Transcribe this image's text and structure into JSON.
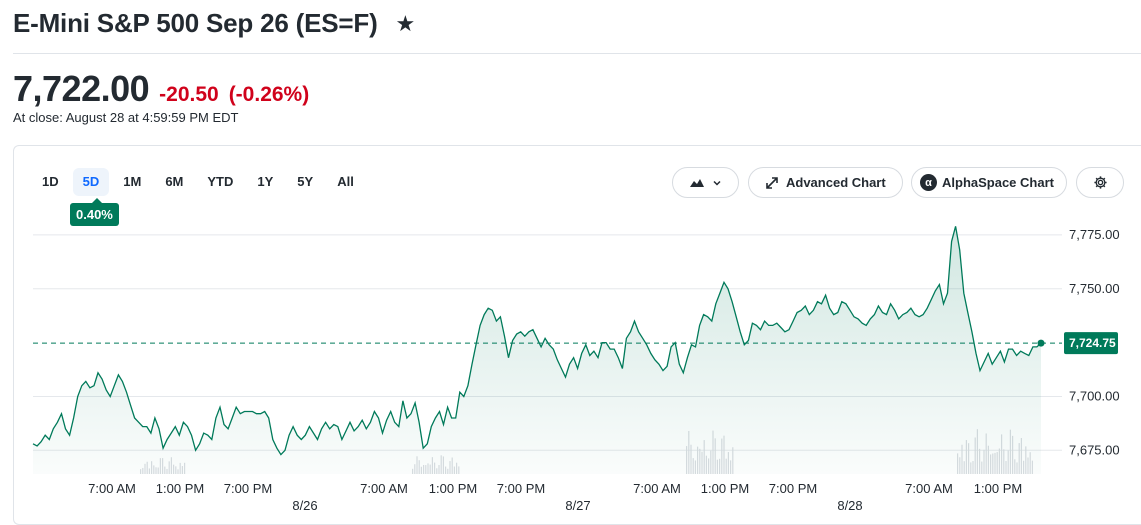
{
  "header": {
    "title": "E-Mini S&P 500 Sep 26 (ES=F)",
    "star_icon": "★"
  },
  "quote": {
    "price": "7,722.00",
    "change": "-20.50",
    "change_pct": "(-0.26%)",
    "close_time": "At close: August 28 at 4:59:59 PM EDT"
  },
  "colors": {
    "up": "#007a5a",
    "down": "#d0021b",
    "active_range": "#0f69ff"
  },
  "toolbar": {
    "ranges": [
      "1D",
      "5D",
      "1M",
      "6M",
      "YTD",
      "1Y",
      "5Y",
      "All"
    ],
    "active_range": "5D",
    "range_change_badge": "0.40%",
    "chart_type_icon": "mountain-chart-icon",
    "advanced_chart_label": "Advanced Chart",
    "alphaspace_chart_label": "AlphaSpace Chart",
    "alpha_symbol": "α",
    "settings_icon": "gear-icon"
  },
  "chart_data": {
    "type": "area",
    "series": [
      {
        "values": [
          7678,
          7677,
          7679,
          7682,
          7680,
          7685,
          7688,
          7692,
          7685,
          7682,
          7690,
          7700,
          7705,
          7707,
          7704,
          7705,
          7711,
          7708,
          7703,
          7700,
          7705,
          7710,
          7707,
          7702,
          7696,
          7690,
          7688,
          7686,
          7686,
          7683,
          7690,
          7685,
          7676,
          7680,
          7683,
          7686,
          7682,
          7688,
          7686,
          7682,
          7675,
          7678,
          7683,
          7682,
          7680,
          7690,
          7695,
          7687,
          7685,
          7690,
          7695,
          7692,
          7693,
          7693,
          7693,
          7692,
          7692,
          7693,
          7690,
          7680,
          7676,
          7673,
          7675,
          7682,
          7686,
          7682,
          7680,
          7682,
          7686,
          7683,
          7680,
          7685,
          7688,
          7685,
          7687,
          7686,
          7680,
          7684,
          7688,
          7684,
          7686,
          7689,
          7685,
          7688,
          7693,
          7690,
          7683,
          7689,
          7693,
          7688,
          7686,
          7698,
          7690,
          7692,
          7697,
          7688,
          7676,
          7678,
          7686,
          7690,
          7693,
          7687,
          7695,
          7690,
          7690,
          7702,
          7700,
          7705,
          7715,
          7724,
          7733,
          7738,
          7741,
          7740,
          7735,
          7737,
          7728,
          7718,
          7726,
          7729,
          7730,
          7728,
          7730,
          7731,
          7727,
          7723,
          7727,
          7724,
          7722,
          7717,
          7713,
          7709,
          7715,
          7718,
          7713,
          7720,
          7724,
          7719,
          7721,
          7718,
          7725,
          7725,
          7722,
          7722,
          7718,
          7713,
          7727,
          7730,
          7735,
          7730,
          7727,
          7724,
          7720,
          7717,
          7715,
          7712,
          7714,
          7723,
          7725,
          7715,
          7711,
          7718,
          7724,
          7723,
          7733,
          7738,
          7737,
          7735,
          7743,
          7748,
          7753,
          7750,
          7744,
          7737,
          7730,
          7724,
          7726,
          7734,
          7733,
          7731,
          7735,
          7733,
          7733,
          7734,
          7732,
          7730,
          7731,
          7735,
          7739,
          7740,
          7742,
          7738,
          7740,
          7744,
          7743,
          7747,
          7741,
          7738,
          7739,
          7744,
          7743,
          7740,
          7737,
          7736,
          7734,
          7733,
          7736,
          7738,
          7742,
          7739,
          7738,
          7743,
          7740,
          7736,
          7738,
          7739,
          7741,
          7738,
          7737,
          7738,
          7741,
          7745,
          7749,
          7752,
          7743,
          7748,
          7772,
          7779,
          7768,
          7748,
          7739,
          7730,
          7720,
          7712,
          7716,
          7720,
          7715,
          7718,
          7721,
          7716,
          7722,
          7722,
          7719,
          7721,
          7720,
          7719,
          7723,
          7723,
          7724.75
        ]
      }
    ],
    "y_ticks": [
      "7,775.00",
      "7,750.00",
      "7,700.00",
      "7,675.00"
    ],
    "y_tick_values": [
      7775,
      7750,
      7700,
      7675
    ],
    "y_range": [
      7664,
      7781
    ],
    "reference_line": 7724.75,
    "last_price_label": "7,724.75",
    "x_tick_labels": [
      "7:00 AM",
      "1:00 PM",
      "7:00 PM",
      "7:00 AM",
      "1:00 PM",
      "7:00 PM",
      "7:00 AM",
      "1:00 PM",
      "7:00 PM",
      "7:00 AM",
      "1:00 PM"
    ],
    "x_date_labels": [
      "8/26",
      "8/27",
      "8/28"
    ],
    "grid": true
  }
}
